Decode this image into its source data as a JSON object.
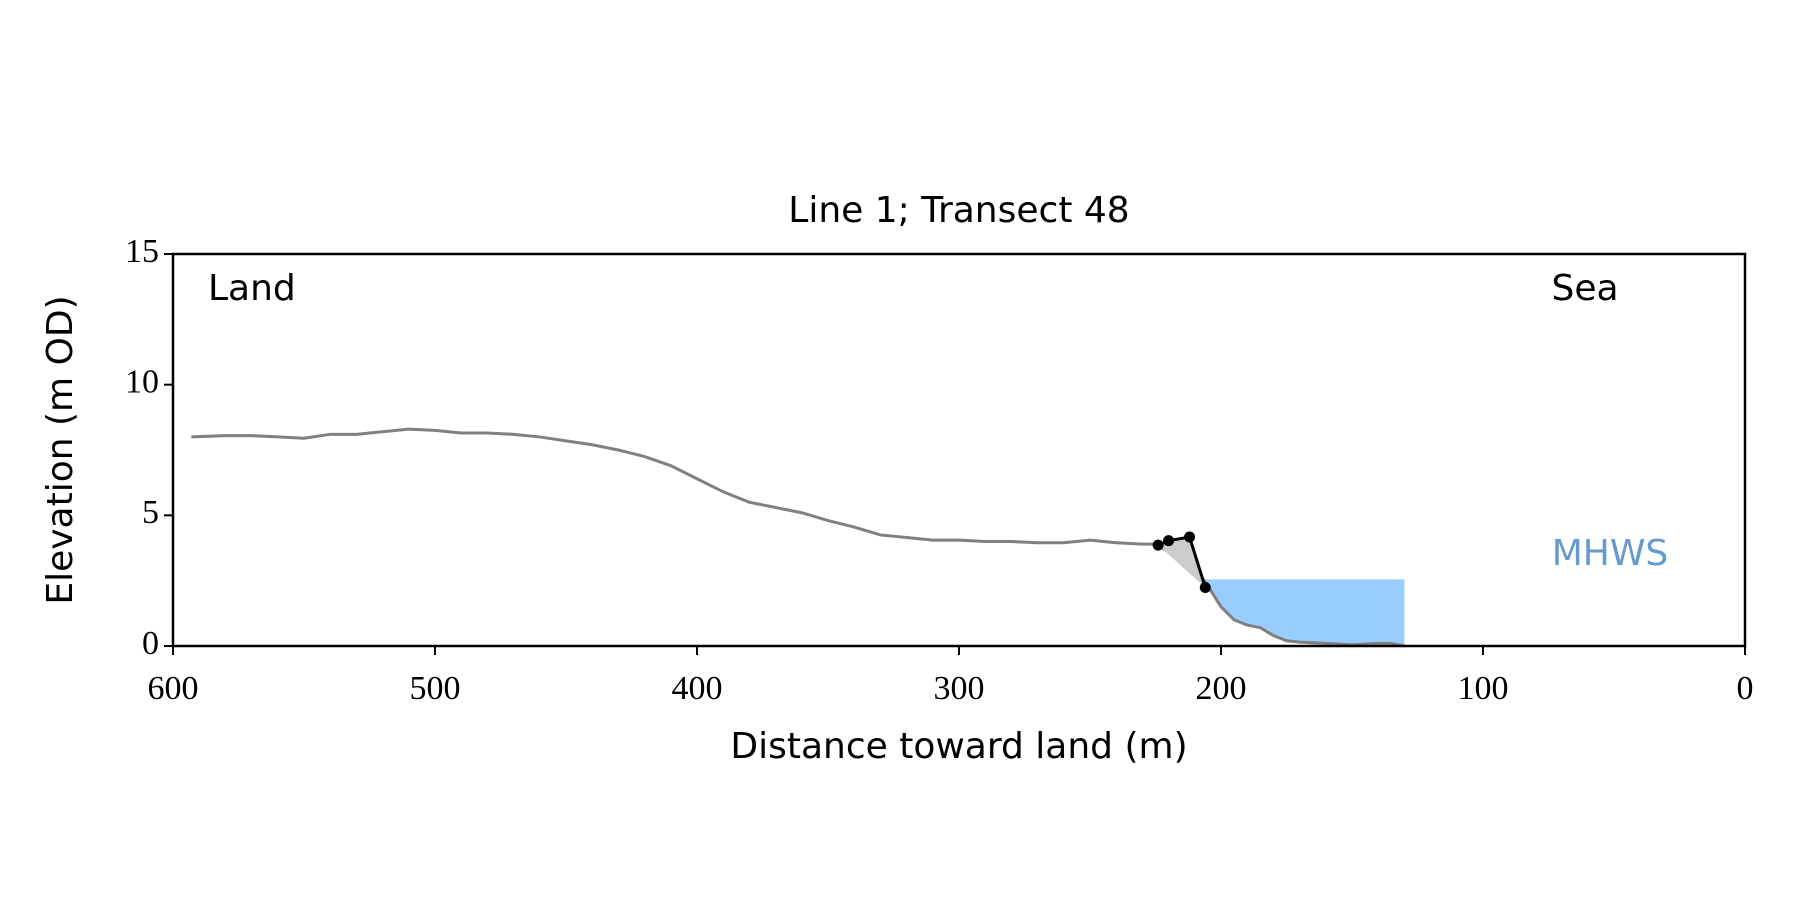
{
  "chart_data": {
    "type": "line",
    "title": "Line 1; Transect 48",
    "x_label": "Distance toward land (m)",
    "y_label": "Elevation (m OD)",
    "xlim": [
      600,
      0
    ],
    "ylim": [
      0,
      15
    ],
    "xticks": [
      600,
      500,
      400,
      300,
      200,
      100,
      0
    ],
    "yticks": [
      0,
      5,
      10,
      15
    ],
    "annotations": [
      {
        "text": "Land"
      },
      {
        "text": "Sea"
      }
    ],
    "series": [
      {
        "color": "#808080",
        "x": [
          593,
          580,
          570,
          560,
          550,
          540,
          530,
          520,
          510,
          500,
          490,
          480,
          470,
          460,
          450,
          440,
          430,
          420,
          410,
          400,
          390,
          380,
          370,
          360,
          350,
          340,
          330,
          320,
          310,
          300,
          290,
          280,
          270,
          260,
          250,
          240,
          230,
          225,
          220,
          210,
          205,
          200,
          195,
          190,
          185,
          180,
          175,
          170,
          160,
          150,
          140,
          135,
          130
        ],
        "values": [
          8.0,
          8.05,
          8.05,
          8.0,
          7.95,
          8.1,
          8.1,
          8.2,
          8.3,
          8.25,
          8.15,
          8.15,
          8.1,
          8.0,
          7.85,
          7.7,
          7.5,
          7.25,
          6.9,
          6.4,
          5.9,
          5.5,
          5.3,
          5.1,
          4.8,
          4.55,
          4.25,
          4.15,
          4.05,
          4.05,
          4.0,
          4.0,
          3.95,
          3.95,
          4.05,
          3.95,
          3.9,
          3.9,
          3.6,
          3.0,
          2.3,
          1.5,
          1.0,
          0.8,
          0.7,
          0.4,
          0.2,
          0.15,
          0.1,
          0.05,
          0.1,
          0.1,
          0.0
        ]
      },
      {
        "color": "#000000",
        "fill": "#cccccc",
        "markers": true,
        "x": [
          224,
          220,
          212,
          206
        ],
        "values": [
          3.86,
          4.03,
          4.17,
          2.24
        ]
      }
    ],
    "mhws": {
      "label": "MHWS",
      "value": 2.55,
      "x_range": [
        206,
        130
      ],
      "color": "#99ccff",
      "label_color": "#6699cc"
    }
  }
}
